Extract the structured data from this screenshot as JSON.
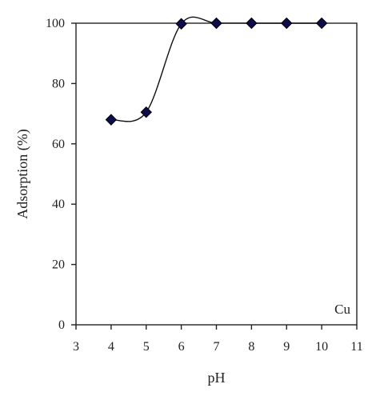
{
  "chart_data": {
    "type": "line",
    "xlabel": "pH",
    "ylabel": "Adsorption (%)",
    "xlim": [
      3,
      11
    ],
    "ylim": [
      0,
      100
    ],
    "xticks": [
      3,
      4,
      5,
      6,
      7,
      8,
      9,
      10,
      11
    ],
    "yticks": [
      0,
      20,
      40,
      60,
      80,
      100
    ],
    "x_tick_labels": [
      "3",
      "4",
      "5",
      "6",
      "7",
      "8",
      "9",
      "10",
      "11"
    ],
    "y_tick_labels": [
      "0",
      "20",
      "40",
      "60",
      "80",
      "100"
    ],
    "grid": false,
    "smooth": true,
    "marker": "diamond",
    "marker_color": "#0d0d4d",
    "line_color": "#111111",
    "series": [
      {
        "x": [
          4,
          5,
          6,
          7,
          8,
          9,
          10
        ],
        "y": [
          68,
          70.5,
          99.8,
          100,
          100,
          100,
          100
        ]
      }
    ],
    "annotations": [
      {
        "text": "Cu",
        "position": "bottom-right"
      }
    ]
  }
}
